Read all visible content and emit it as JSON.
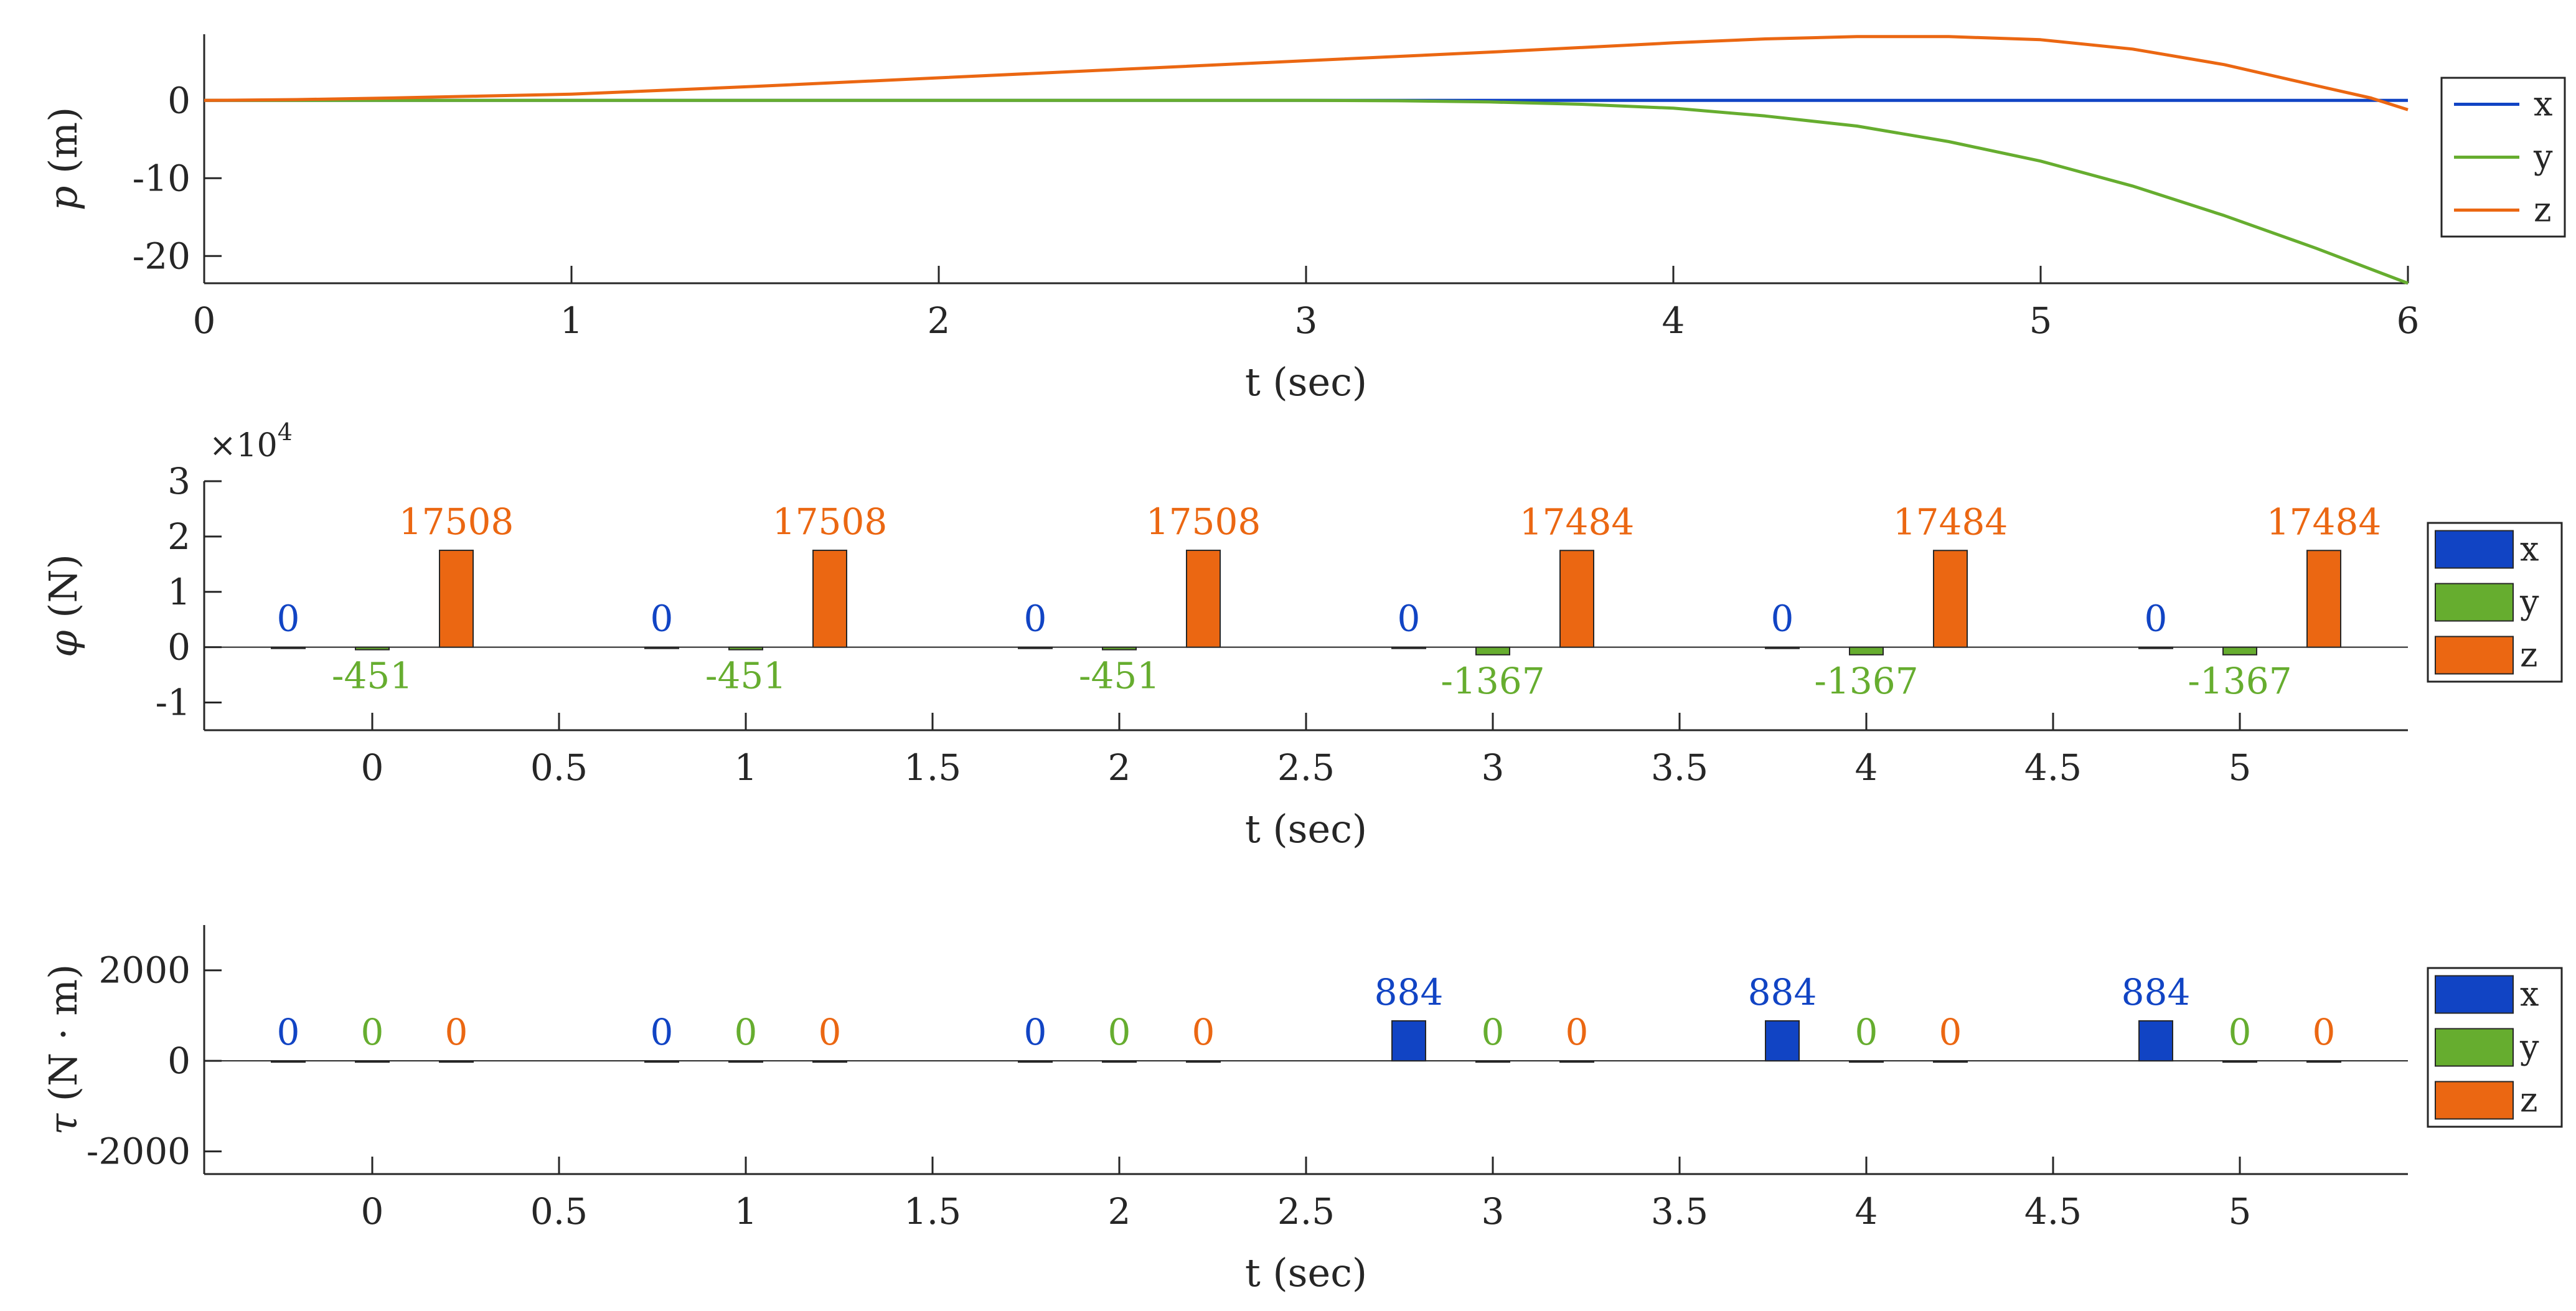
{
  "colors": {
    "x": "#1144C4",
    "y": "#66AD2F",
    "z": "#EB6712",
    "axis": "#262626"
  },
  "chart_data": [
    {
      "type": "line",
      "xlabel": "t (sec)",
      "ylabel": "p (m)",
      "ylabel_var": "p",
      "ylabel_unit": " (m)",
      "xlim": [
        0,
        6
      ],
      "ylim": [
        -23.5,
        8.5
      ],
      "xticks": [
        0,
        1,
        2,
        3,
        4,
        5,
        6
      ],
      "xtick_labels": [
        "0",
        "1",
        "2",
        "3",
        "4",
        "5",
        "6"
      ],
      "yticks": [
        0,
        -10,
        -20
      ],
      "ytick_labels": [
        "0",
        "-10",
        "-20"
      ],
      "legend": [
        "x",
        "y",
        "z"
      ],
      "series": [
        {
          "name": "x",
          "x": [
            0,
            1,
            2,
            3,
            4,
            5,
            6
          ],
          "values": [
            0,
            0,
            0,
            0,
            0,
            0,
            0
          ]
        },
        {
          "name": "y",
          "x": [
            0,
            0.5,
            1,
            1.5,
            2,
            2.5,
            3,
            3.25,
            3.5,
            3.75,
            4,
            4.25,
            4.5,
            4.75,
            5,
            5.25,
            5.5,
            5.75,
            6
          ],
          "values": [
            0,
            0,
            0,
            0,
            0,
            0,
            0,
            -0.05,
            -0.2,
            -0.5,
            -1.0,
            -2.0,
            -3.3,
            -5.3,
            -7.8,
            -11.0,
            -14.8,
            -19.0,
            -23.5
          ]
        },
        {
          "name": "z",
          "x": [
            0,
            0.25,
            0.5,
            0.75,
            1,
            1.5,
            2,
            2.5,
            3,
            3.5,
            4,
            4.25,
            4.5,
            4.75,
            5,
            5.25,
            5.5,
            5.75,
            5.9,
            6
          ],
          "values": [
            0,
            0.1,
            0.3,
            0.55,
            0.8,
            1.8,
            2.9,
            4.0,
            5.1,
            6.2,
            7.4,
            7.9,
            8.2,
            8.2,
            7.8,
            6.6,
            4.6,
            1.9,
            0.3,
            -1.2
          ]
        }
      ]
    },
    {
      "type": "bar",
      "xlabel": "t (sec)",
      "ylabel": "φ (N)",
      "ylabel_var": "φ",
      "ylabel_unit": " (N)",
      "exponent_label": "×10",
      "exponent_power": "4",
      "scale": 10000,
      "categories": [
        0,
        1,
        2,
        3,
        4,
        5
      ],
      "xlim": [
        -0.45,
        5.45
      ],
      "ylim": [
        -1.5,
        3
      ],
      "xticks": [
        0,
        0.5,
        1,
        1.5,
        2,
        2.5,
        3,
        3.5,
        4,
        4.5,
        5
      ],
      "xtick_labels": [
        "0",
        "0.5",
        "1",
        "1.5",
        "2",
        "2.5",
        "3",
        "3.5",
        "4",
        "4.5",
        "5"
      ],
      "yticks": [
        3,
        2,
        1,
        0,
        -1
      ],
      "ytick_labels": [
        "3",
        "2",
        "1",
        "0",
        "-1"
      ],
      "legend": [
        "x",
        "y",
        "z"
      ],
      "series": [
        {
          "name": "x",
          "values": [
            0,
            0,
            0,
            0,
            0,
            0
          ],
          "labels": [
            "0",
            "0",
            "0",
            "0",
            "0",
            "0"
          ]
        },
        {
          "name": "y",
          "values": [
            -451,
            -451,
            -451,
            -1367,
            -1367,
            -1367
          ],
          "labels": [
            "-451",
            "-451",
            "-451",
            "-1367",
            "-1367",
            "-1367"
          ]
        },
        {
          "name": "z",
          "values": [
            17508,
            17508,
            17508,
            17484,
            17484,
            17484
          ],
          "labels": [
            "17508",
            "17508",
            "17508",
            "17484",
            "17484",
            "17484"
          ]
        }
      ]
    },
    {
      "type": "bar",
      "xlabel": "t (sec)",
      "ylabel": "τ (N · m)",
      "ylabel_var": "τ",
      "ylabel_unit": " (N · m)",
      "scale": 1,
      "categories": [
        0,
        1,
        2,
        3,
        4,
        5
      ],
      "xlim": [
        -0.45,
        5.45
      ],
      "ylim": [
        -2500,
        3000
      ],
      "xticks": [
        0,
        0.5,
        1,
        1.5,
        2,
        2.5,
        3,
        3.5,
        4,
        4.5,
        5
      ],
      "xtick_labels": [
        "0",
        "0.5",
        "1",
        "1.5",
        "2",
        "2.5",
        "3",
        "3.5",
        "4",
        "4.5",
        "5"
      ],
      "yticks": [
        2000,
        0,
        -2000
      ],
      "ytick_labels": [
        "2000",
        "0",
        "-2000"
      ],
      "legend": [
        "x",
        "y",
        "z"
      ],
      "series": [
        {
          "name": "x",
          "values": [
            0,
            0,
            0,
            884,
            884,
            884
          ],
          "labels": [
            "0",
            "0",
            "0",
            "884",
            "884",
            "884"
          ]
        },
        {
          "name": "y",
          "values": [
            0,
            0,
            0,
            0,
            0,
            0
          ],
          "labels": [
            "0",
            "0",
            "0",
            "0",
            "0",
            "0"
          ]
        },
        {
          "name": "z",
          "values": [
            0,
            0,
            0,
            0,
            0,
            0
          ],
          "labels": [
            "0",
            "0",
            "0",
            "0",
            "0",
            "0"
          ]
        }
      ]
    }
  ]
}
